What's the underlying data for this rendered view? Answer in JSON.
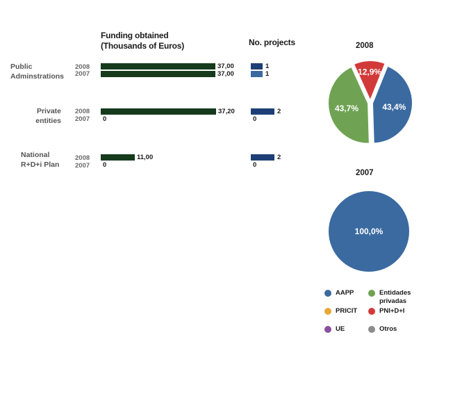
{
  "chart_data": [
    {
      "type": "bar",
      "title": "Funding obtained (Thousands of Euros)",
      "categories": [
        "Public Adminstrations",
        "Private entities",
        "National R+D+i Plan"
      ],
      "series": [
        {
          "name": "2008",
          "values": [
            37.0,
            37.2,
            11.0
          ],
          "labels": [
            "37,00",
            "37,20",
            "11,00"
          ]
        },
        {
          "name": "2007",
          "values": [
            37.0,
            0,
            0
          ],
          "labels": [
            "37,00",
            "0",
            "0"
          ]
        }
      ],
      "xlim": [
        0,
        37.2
      ]
    },
    {
      "type": "bar",
      "title": "No. projects",
      "categories": [
        "Public Adminstrations",
        "Private entities",
        "National R+D+i Plan"
      ],
      "series": [
        {
          "name": "2008",
          "values": [
            1,
            2,
            2
          ],
          "labels": [
            "1",
            "2",
            "2"
          ]
        },
        {
          "name": "2007",
          "values": [
            1,
            0,
            0
          ],
          "labels": [
            "1",
            "0",
            "0"
          ]
        }
      ],
      "xlim": [
        0,
        2
      ]
    },
    {
      "type": "pie",
      "title": "2008",
      "slices": [
        {
          "name": "AAPP",
          "value": 43.4,
          "label": "43,4%"
        },
        {
          "name": "Entidades privadas",
          "value": 43.7,
          "label": "43,7%"
        },
        {
          "name": "PNI+D+I",
          "value": 12.9,
          "label": "12,9%"
        }
      ]
    },
    {
      "type": "pie",
      "title": "2007",
      "slices": [
        {
          "name": "AAPP",
          "value": 100.0,
          "label": "100,0%"
        }
      ]
    }
  ],
  "headers": {
    "funding": [
      "Funding obtained",
      "(Thousands of Euros)"
    ],
    "projects": "No. projects"
  },
  "categories": [
    {
      "lines": [
        "Public",
        "Adminstrations"
      ]
    },
    {
      "lines": [
        "Private",
        "entities"
      ]
    },
    {
      "lines": [
        "National",
        "R+D+i Plan"
      ]
    }
  ],
  "years": [
    "2008",
    "2007"
  ],
  "legend": [
    {
      "label": "AAPP",
      "color": "#3b6aa0"
    },
    {
      "label": "Entidades privadas",
      "color": "#6fa353"
    },
    {
      "label": "PRICIT",
      "color": "#e8a838"
    },
    {
      "label": "PNI+D+I",
      "color": "#d23a3a"
    },
    {
      "label": "UE",
      "color": "#8a4f9e"
    },
    {
      "label": "Otros",
      "color": "#8c8c8c"
    }
  ],
  "colors": {
    "funding_bar": "#153a1c",
    "projects_2008": "#1e3f75",
    "projects_2007": "#3b6aa0",
    "pie_aapp": "#3b6aa0",
    "pie_privadas": "#6fa353",
    "pie_pni": "#d23a3a"
  }
}
